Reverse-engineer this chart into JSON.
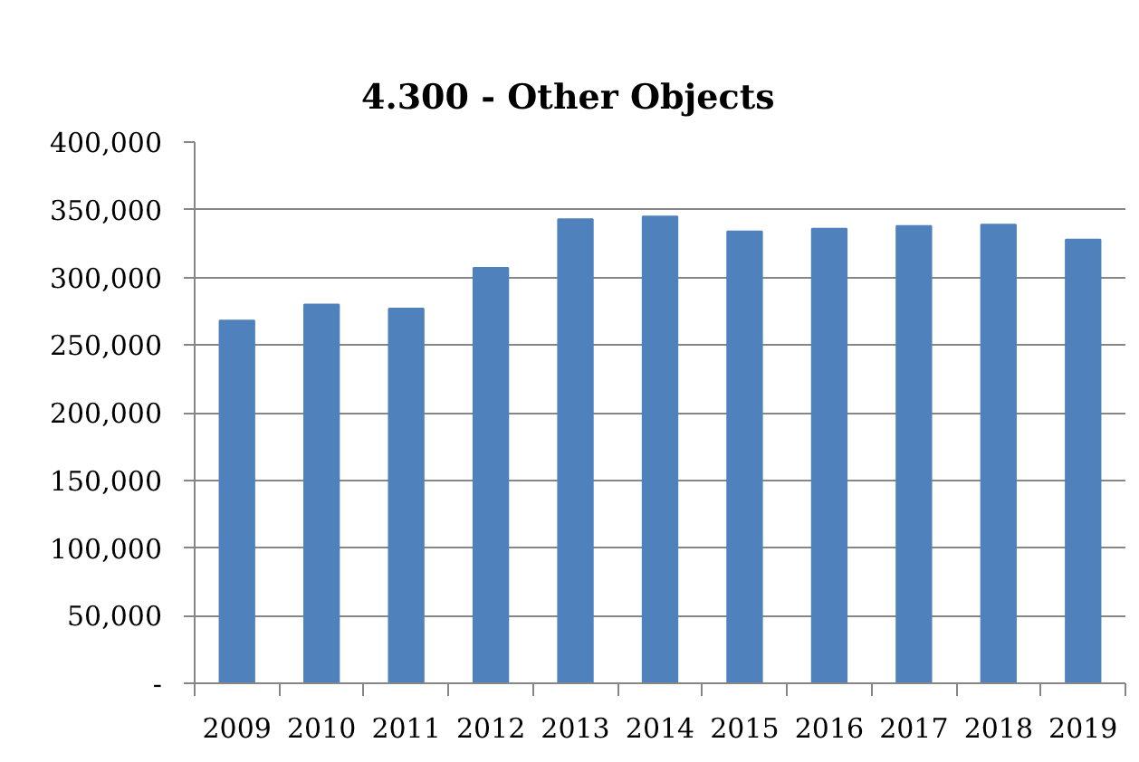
{
  "chart_data": {
    "type": "bar",
    "title": "4.300 - Other Objects",
    "categories": [
      "2009",
      "2010",
      "2011",
      "2012",
      "2013",
      "2014",
      "2015",
      "2016",
      "2017",
      "2018",
      "2019"
    ],
    "values": [
      268000,
      280000,
      277000,
      307000,
      343000,
      345000,
      334000,
      336000,
      338000,
      339000,
      328000
    ],
    "color": "#4f81bd",
    "ylim": [
      0,
      400000
    ],
    "yticks": [
      {
        "value": 0,
        "label": "-"
      },
      {
        "value": 50000,
        "label": "50,000"
      },
      {
        "value": 100000,
        "label": "100,000"
      },
      {
        "value": 150000,
        "label": "150,000"
      },
      {
        "value": 200000,
        "label": "200,000"
      },
      {
        "value": 250000,
        "label": "250,000"
      },
      {
        "value": 300000,
        "label": "300,000"
      },
      {
        "value": 350000,
        "label": "350,000"
      },
      {
        "value": 400000,
        "label": "400,000"
      }
    ],
    "grid": "y"
  }
}
